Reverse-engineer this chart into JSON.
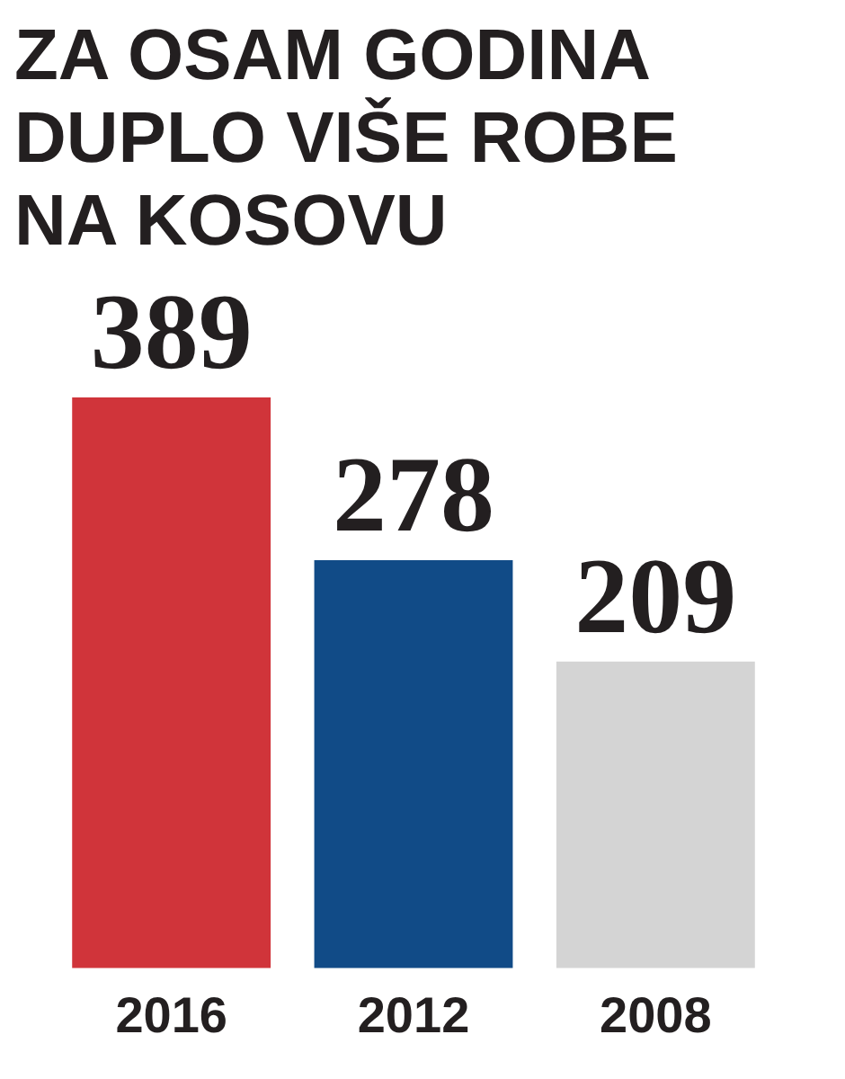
{
  "chart_data": {
    "type": "bar",
    "title": "ZA OSAM GODINA DUPLO VIŠE ROBE NA KOSOVU",
    "categories": [
      "2016",
      "2012",
      "2008"
    ],
    "values": [
      389,
      278,
      209
    ],
    "colors": [
      "#d0343a",
      "#114b87",
      "#d4d4d4"
    ],
    "data_labels": true,
    "tick_labels": "x",
    "grid": false,
    "legend": false
  }
}
